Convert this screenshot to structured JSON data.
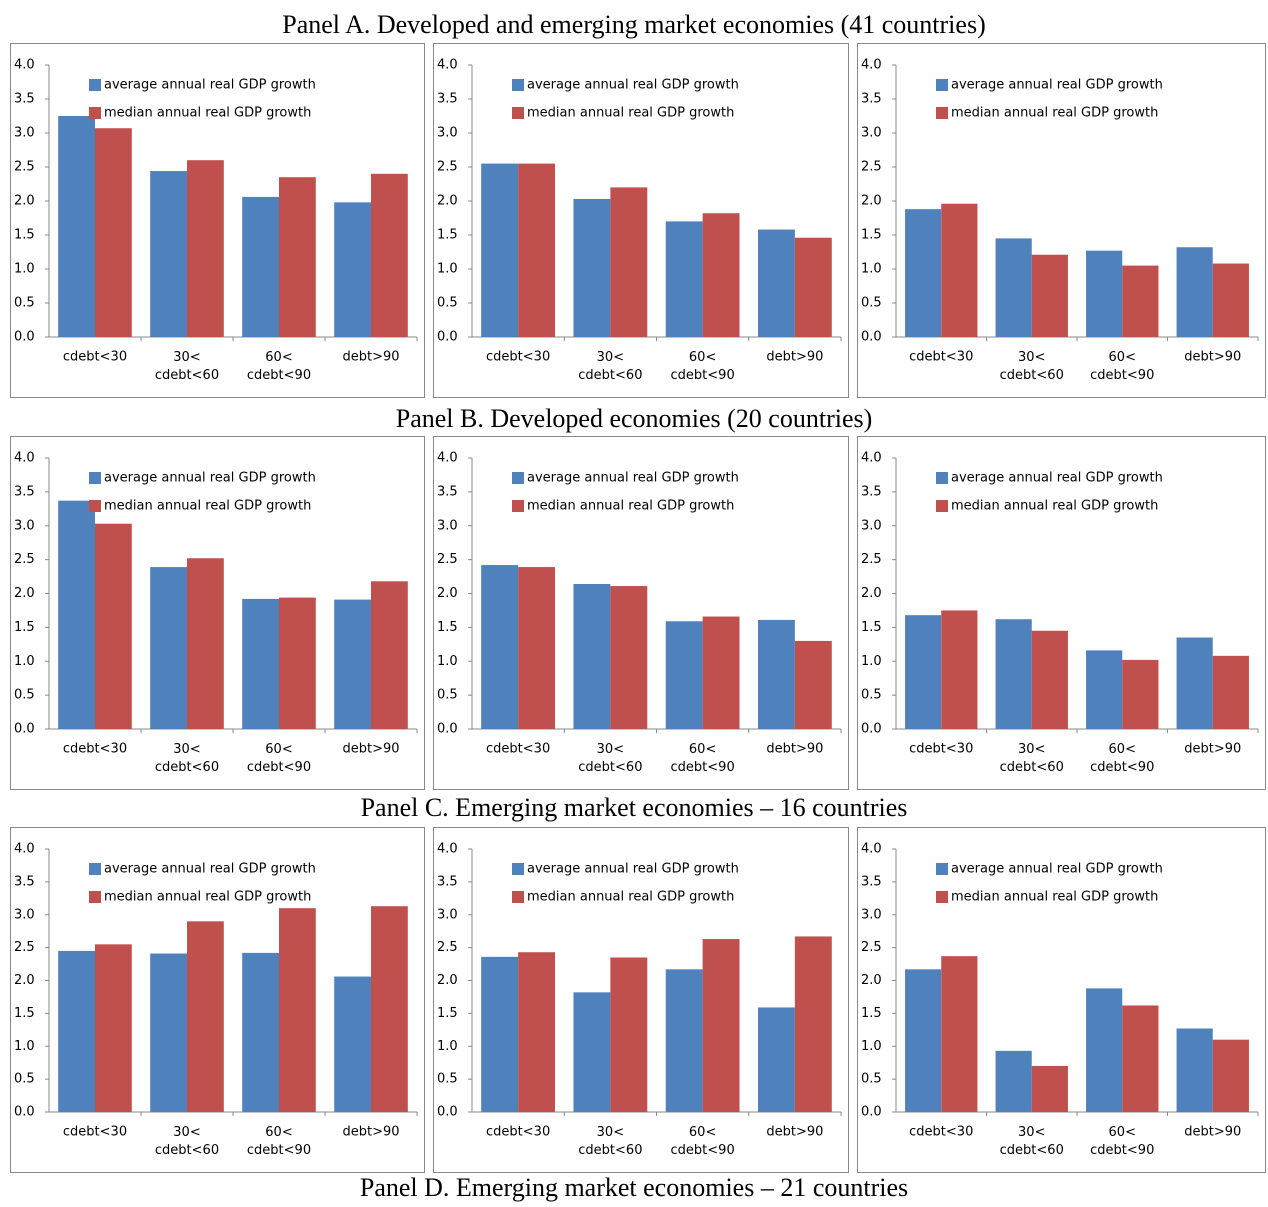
{
  "panel_titles": [
    "Panel A. Developed and emerging market economies (41 countries)",
    "Panel B. Developed economies (20 countries)",
    "Panel C. Emerging market economies – 16 countries",
    "Panel D. Emerging market economies – 21 countries"
  ],
  "chart_data": [
    {
      "type": "bar",
      "categories": [
        "cdebt<30",
        "30<\ncdebt<60",
        "60<\ncdebt<90",
        "debt>90"
      ],
      "series": [
        {
          "name": "average annual real GDP growth",
          "color": "#4f81bd",
          "values": [
            3.25,
            2.44,
            2.06,
            1.98
          ]
        },
        {
          "name": "median annual real GDP growth",
          "color": "#c0504d",
          "values": [
            3.07,
            2.6,
            2.35,
            2.4
          ]
        }
      ],
      "ylim": [
        0,
        4
      ],
      "yticks": [
        {
          "value": 0,
          "label": "0.0"
        },
        {
          "value": 0.5,
          "label": "0.5"
        },
        {
          "value": 1,
          "label": "1.0"
        },
        {
          "value": 1.5,
          "label": "1.5"
        },
        {
          "value": 2,
          "label": "2.0"
        },
        {
          "value": 2.5,
          "label": "2.5"
        },
        {
          "value": 3,
          "label": "3.0"
        },
        {
          "value": 3.5,
          "label": "3.5"
        },
        {
          "value": 4,
          "label": "4.0"
        }
      ]
    },
    {
      "type": "bar",
      "categories": [
        "cdebt<30",
        "30<\ncdebt<60",
        "60<\ncdebt<90",
        "debt>90"
      ],
      "series": [
        {
          "name": "average annual real GDP growth",
          "color": "#4f81bd",
          "values": [
            2.55,
            2.03,
            1.7,
            1.58
          ]
        },
        {
          "name": "median annual real GDP growth",
          "color": "#c0504d",
          "values": [
            2.55,
            2.2,
            1.82,
            1.46
          ]
        }
      ],
      "ylim": [
        0,
        4
      ],
      "yticks": [
        {
          "value": 0,
          "label": "0.0"
        },
        {
          "value": 0.5,
          "label": "0.5"
        },
        {
          "value": 1,
          "label": "1.0"
        },
        {
          "value": 1.5,
          "label": "1.5"
        },
        {
          "value": 2,
          "label": "2.0"
        },
        {
          "value": 2.5,
          "label": "2.5"
        },
        {
          "value": 3,
          "label": "3.0"
        },
        {
          "value": 3.5,
          "label": "3.5"
        },
        {
          "value": 4,
          "label": "4.0"
        }
      ]
    },
    {
      "type": "bar",
      "categories": [
        "cdebt<30",
        "30<\ncdebt<60",
        "60<\ncdebt<90",
        "debt>90"
      ],
      "series": [
        {
          "name": "average annual real GDP growth",
          "color": "#4f81bd",
          "values": [
            1.88,
            1.45,
            1.27,
            1.32
          ]
        },
        {
          "name": "median annual real GDP growth",
          "color": "#c0504d",
          "values": [
            1.96,
            1.21,
            1.05,
            1.08
          ]
        }
      ],
      "ylim": [
        0,
        4
      ],
      "yticks": [
        {
          "value": 0,
          "label": "0.0"
        },
        {
          "value": 0.5,
          "label": "0.5"
        },
        {
          "value": 1,
          "label": "1.0"
        },
        {
          "value": 1.5,
          "label": "1.5"
        },
        {
          "value": 2,
          "label": "2.0"
        },
        {
          "value": 2.5,
          "label": "2.5"
        },
        {
          "value": 3,
          "label": "3.0"
        },
        {
          "value": 3.5,
          "label": "3.5"
        },
        {
          "value": 4,
          "label": "4.0"
        }
      ]
    },
    {
      "type": "bar",
      "categories": [
        "cdebt<30",
        "30<\ncdebt<60",
        "60<\ncdebt<90",
        "debt>90"
      ],
      "series": [
        {
          "name": "average annual real GDP growth",
          "color": "#4f81bd",
          "values": [
            3.37,
            2.39,
            1.92,
            1.91
          ]
        },
        {
          "name": "median annual real GDP growth",
          "color": "#c0504d",
          "values": [
            3.03,
            2.52,
            1.94,
            2.18
          ]
        }
      ],
      "ylim": [
        0,
        4
      ],
      "yticks": [
        {
          "value": 0,
          "label": "0.0"
        },
        {
          "value": 0.5,
          "label": "0.5"
        },
        {
          "value": 1,
          "label": "1.0"
        },
        {
          "value": 1.5,
          "label": "1.5"
        },
        {
          "value": 2,
          "label": "2.0"
        },
        {
          "value": 2.5,
          "label": "2.5"
        },
        {
          "value": 3,
          "label": "3.0"
        },
        {
          "value": 3.5,
          "label": "3.5"
        },
        {
          "value": 4,
          "label": "4.0"
        }
      ]
    },
    {
      "type": "bar",
      "categories": [
        "cdebt<30",
        "30<\ncdebt<60",
        "60<\ncdebt<90",
        "debt>90"
      ],
      "series": [
        {
          "name": "average annual real GDP growth",
          "color": "#4f81bd",
          "values": [
            2.42,
            2.14,
            1.59,
            1.61
          ]
        },
        {
          "name": "median annual real GDP growth",
          "color": "#c0504d",
          "values": [
            2.39,
            2.11,
            1.66,
            1.3
          ]
        }
      ],
      "ylim": [
        0,
        4
      ],
      "yticks": [
        {
          "value": 0,
          "label": "0.0"
        },
        {
          "value": 0.5,
          "label": "0.5"
        },
        {
          "value": 1,
          "label": "1.0"
        },
        {
          "value": 1.5,
          "label": "1.5"
        },
        {
          "value": 2,
          "label": "2.0"
        },
        {
          "value": 2.5,
          "label": "2.5"
        },
        {
          "value": 3,
          "label": "3.0"
        },
        {
          "value": 3.5,
          "label": "3.5"
        },
        {
          "value": 4,
          "label": "4.0"
        }
      ]
    },
    {
      "type": "bar",
      "categories": [
        "cdebt<30",
        "30<\ncdebt<60",
        "60<\ncdebt<90",
        "debt>90"
      ],
      "series": [
        {
          "name": "average annual real GDP growth",
          "color": "#4f81bd",
          "values": [
            1.68,
            1.62,
            1.16,
            1.35
          ]
        },
        {
          "name": "median annual real GDP growth",
          "color": "#c0504d",
          "values": [
            1.75,
            1.45,
            1.02,
            1.08
          ]
        }
      ],
      "ylim": [
        0,
        4
      ],
      "yticks": [
        {
          "value": 0,
          "label": "0.0"
        },
        {
          "value": 0.5,
          "label": "0.5"
        },
        {
          "value": 1,
          "label": "1.0"
        },
        {
          "value": 1.5,
          "label": "1.5"
        },
        {
          "value": 2,
          "label": "2.0"
        },
        {
          "value": 2.5,
          "label": "2.5"
        },
        {
          "value": 3,
          "label": "3.0"
        },
        {
          "value": 3.5,
          "label": "3.5"
        },
        {
          "value": 4,
          "label": "4.0"
        }
      ]
    },
    {
      "type": "bar",
      "categories": [
        "cdebt<30",
        "30<\ncdebt<60",
        "60<\ncdebt<90",
        "debt>90"
      ],
      "series": [
        {
          "name": "average annual real GDP growth",
          "color": "#4f81bd",
          "values": [
            2.45,
            2.41,
            2.42,
            2.06
          ]
        },
        {
          "name": "median annual real GDP growth",
          "color": "#c0504d",
          "values": [
            2.55,
            2.9,
            3.1,
            3.13
          ]
        }
      ],
      "ylim": [
        0,
        4
      ],
      "yticks": [
        {
          "value": 0,
          "label": "0.0"
        },
        {
          "value": 0.5,
          "label": "0.5"
        },
        {
          "value": 1,
          "label": "1.0"
        },
        {
          "value": 1.5,
          "label": "1.5"
        },
        {
          "value": 2,
          "label": "2.0"
        },
        {
          "value": 2.5,
          "label": "2.5"
        },
        {
          "value": 3,
          "label": "3.0"
        },
        {
          "value": 3.5,
          "label": "3.5"
        },
        {
          "value": 4,
          "label": "4.0"
        }
      ]
    },
    {
      "type": "bar",
      "categories": [
        "cdebt<30",
        "30<\ncdebt<60",
        "60<\ncdebt<90",
        "debt>90"
      ],
      "series": [
        {
          "name": "average annual real GDP growth",
          "color": "#4f81bd",
          "values": [
            2.36,
            1.82,
            2.17,
            1.59
          ]
        },
        {
          "name": "median annual real GDP growth",
          "color": "#c0504d",
          "values": [
            2.43,
            2.35,
            2.63,
            2.67
          ]
        }
      ],
      "ylim": [
        0,
        4
      ],
      "yticks": [
        {
          "value": 0,
          "label": "0.0"
        },
        {
          "value": 0.5,
          "label": "0.5"
        },
        {
          "value": 1,
          "label": "1.0"
        },
        {
          "value": 1.5,
          "label": "1.5"
        },
        {
          "value": 2,
          "label": "2.0"
        },
        {
          "value": 2.5,
          "label": "2.5"
        },
        {
          "value": 3,
          "label": "3.0"
        },
        {
          "value": 3.5,
          "label": "3.5"
        },
        {
          "value": 4,
          "label": "4.0"
        }
      ]
    },
    {
      "type": "bar",
      "categories": [
        "cdebt<30",
        "30<\ncdebt<60",
        "60<\ncdebt<90",
        "debt>90"
      ],
      "series": [
        {
          "name": "average annual real GDP growth",
          "color": "#4f81bd",
          "values": [
            2.17,
            0.93,
            1.88,
            1.27
          ]
        },
        {
          "name": "median annual real GDP growth",
          "color": "#c0504d",
          "values": [
            2.37,
            0.7,
            1.62,
            1.1
          ]
        }
      ],
      "ylim": [
        0,
        4
      ],
      "yticks": [
        {
          "value": 0,
          "label": "0.0"
        },
        {
          "value": 0.5,
          "label": "0.5"
        },
        {
          "value": 1,
          "label": "1.0"
        },
        {
          "value": 1.5,
          "label": "1.5"
        },
        {
          "value": 2,
          "label": "2.0"
        },
        {
          "value": 2.5,
          "label": "2.5"
        },
        {
          "value": 3,
          "label": "3.0"
        },
        {
          "value": 3.5,
          "label": "3.5"
        },
        {
          "value": 4,
          "label": "4.0"
        }
      ]
    }
  ]
}
